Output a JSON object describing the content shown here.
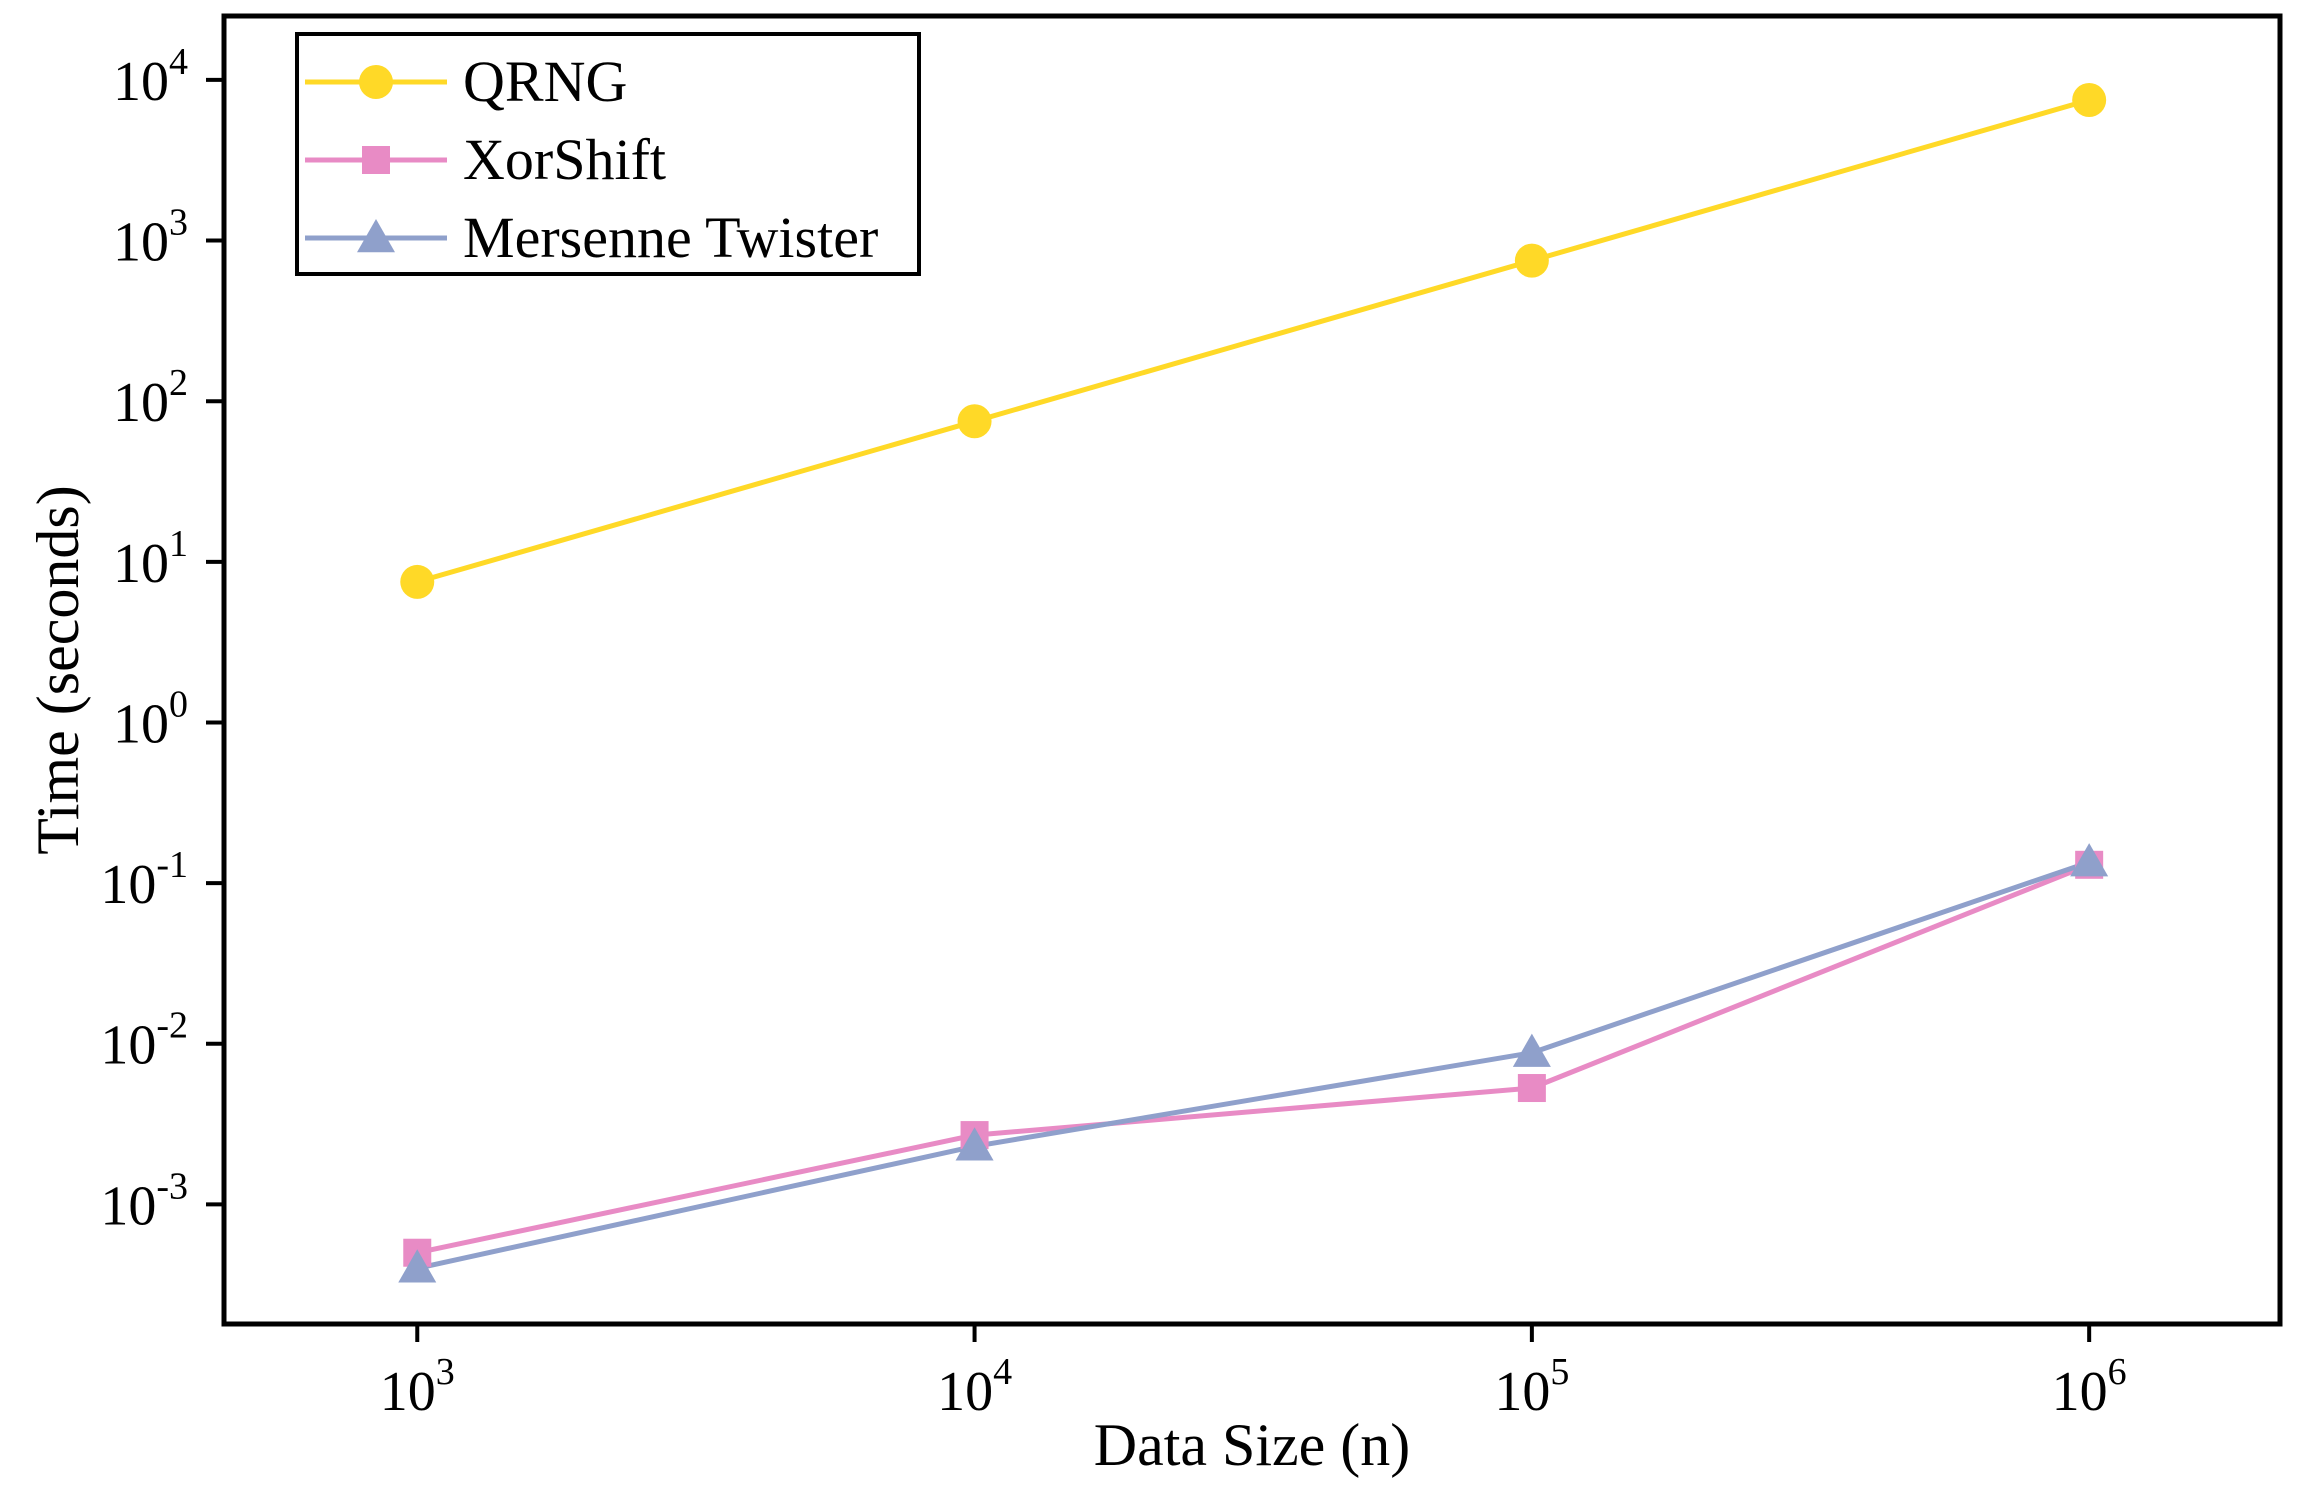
{
  "chart_data": {
    "type": "line",
    "title": "",
    "xlabel": "Data Size (n)",
    "ylabel": "Time (seconds)",
    "x_scale": "log",
    "y_scale": "log",
    "x": [
      1000,
      10000,
      100000,
      1000000
    ],
    "xlim": [
      450,
      2200000
    ],
    "ylim": [
      0.00018,
      25000
    ],
    "x_ticks": [
      {
        "value": 1000,
        "base": "10",
        "exp": "3"
      },
      {
        "value": 10000,
        "base": "10",
        "exp": "4"
      },
      {
        "value": 100000,
        "base": "10",
        "exp": "5"
      },
      {
        "value": 1000000,
        "base": "10",
        "exp": "6"
      }
    ],
    "y_ticks": [
      {
        "value": 0.001,
        "base": "10",
        "exp": "-3"
      },
      {
        "value": 0.01,
        "base": "10",
        "exp": "-2"
      },
      {
        "value": 0.1,
        "base": "10",
        "exp": "-1"
      },
      {
        "value": 1,
        "base": "10",
        "exp": "0"
      },
      {
        "value": 10,
        "base": "10",
        "exp": "1"
      },
      {
        "value": 100,
        "base": "10",
        "exp": "2"
      },
      {
        "value": 1000,
        "base": "10",
        "exp": "3"
      },
      {
        "value": 10000,
        "base": "10",
        "exp": "4"
      }
    ],
    "series": [
      {
        "name": "QRNG",
        "color": "#FFD927",
        "marker": "circle",
        "values": [
          7.5,
          75,
          750,
          7500
        ]
      },
      {
        "name": "XorShift",
        "color": "#E88BC5",
        "marker": "square",
        "values": [
          0.0005,
          0.0027,
          0.0053,
          0.13
        ]
      },
      {
        "name": "Mersenne Twister",
        "color": "#8FA0CB",
        "marker": "triangle",
        "values": [
          0.0004,
          0.0023,
          0.0088,
          0.135
        ]
      }
    ],
    "legend_position": "top-left",
    "grid": false
  }
}
